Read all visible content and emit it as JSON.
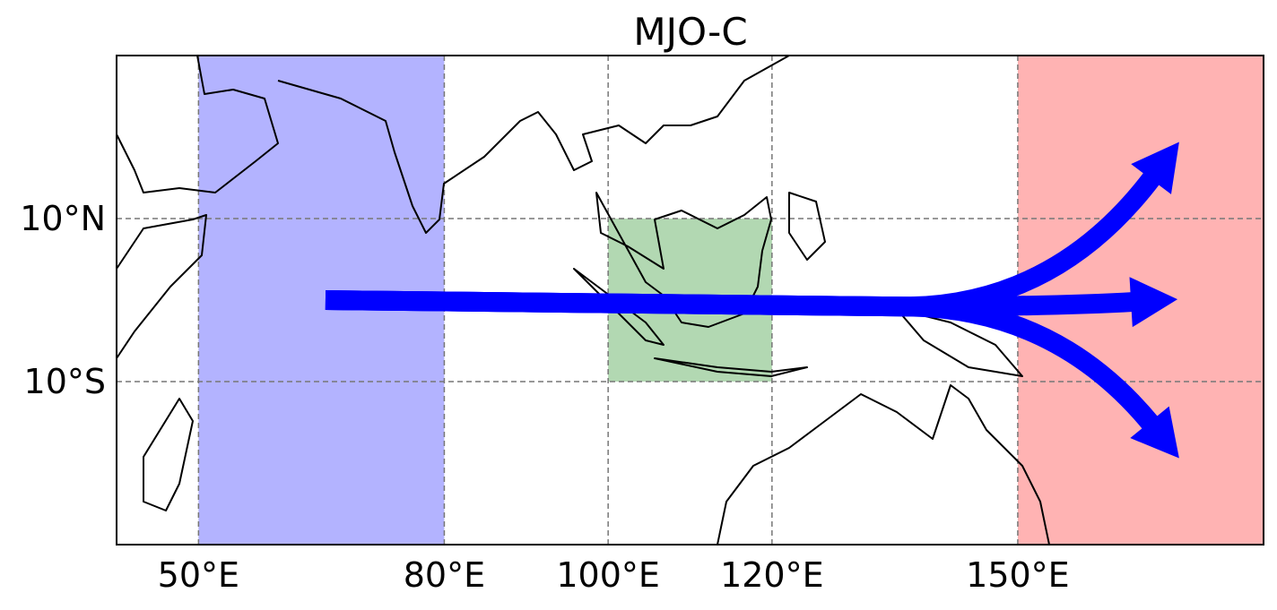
{
  "map": {
    "title": "MJO-C",
    "xlim": [
      40,
      180
    ],
    "ylim": [
      -30,
      30
    ],
    "xticks": [
      {
        "value": 50,
        "label": "50°E"
      },
      {
        "value": 80,
        "label": "80°E"
      },
      {
        "value": 100,
        "label": "100°E"
      },
      {
        "value": 120,
        "label": "120°E"
      },
      {
        "value": 150,
        "label": "150°E"
      }
    ],
    "yticks": [
      {
        "value": 10,
        "label": "10°N"
      },
      {
        "value": -10,
        "label": "10°S"
      }
    ],
    "regions": [
      {
        "lon": [
          50,
          80
        ],
        "lat": [
          -30,
          30
        ],
        "color": "#b3b3ff"
      },
      {
        "lon": [
          100,
          120
        ],
        "lat": [
          -10,
          10
        ],
        "color": "#b2d8b2"
      },
      {
        "lon": [
          150,
          180
        ],
        "lat": [
          -30,
          30
        ],
        "color": "#ffb3b3"
      }
    ],
    "arrow_color": "#0000ff",
    "arrows": [
      {
        "lon": [
          65.5,
          136,
          169.7
        ],
        "lat": [
          0,
          -0.8,
          19.4
        ]
      },
      {
        "lon": [
          65.5,
          136,
          169.5
        ],
        "lat": [
          0,
          -0.8,
          0.1
        ]
      },
      {
        "lon": [
          65.5,
          136,
          169.7
        ],
        "lat": [
          0,
          -0.8,
          -19.4
        ]
      }
    ]
  }
}
